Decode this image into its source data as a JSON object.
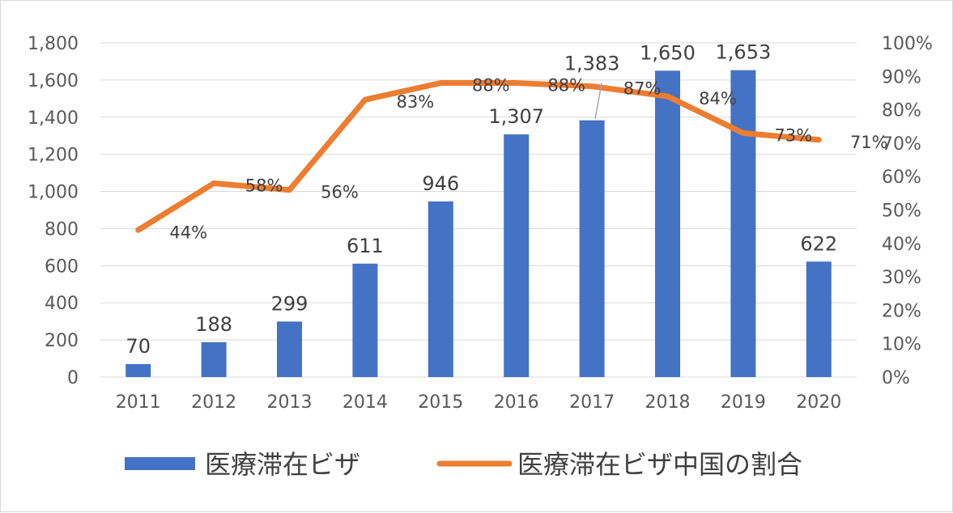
{
  "chart_data": {
    "type": "bar",
    "categories": [
      "2011",
      "2012",
      "2013",
      "2014",
      "2015",
      "2016",
      "2017",
      "2018",
      "2019",
      "2020"
    ],
    "series": [
      {
        "name": "医療滞在ビザ",
        "type": "bar",
        "axis": "left",
        "color": "#4472c4",
        "values": [
          70,
          188,
          299,
          611,
          946,
          1307,
          1383,
          1650,
          1653,
          622
        ],
        "labels": [
          "70",
          "188",
          "299",
          "611",
          "946",
          "1,307",
          "1,383",
          "1,650",
          "1,653",
          "622"
        ]
      },
      {
        "name": "医療滞在ビザ中国の割合",
        "type": "line",
        "axis": "right",
        "color": "#ed7d31",
        "values": [
          44,
          58,
          56,
          83,
          88,
          88,
          87,
          84,
          73,
          71
        ],
        "labels": [
          "44%",
          "58%",
          "56%",
          "83%",
          "88%",
          "88%",
          "87%",
          "84%",
          "73%",
          "71%"
        ]
      }
    ],
    "y_left": {
      "min": 0,
      "max": 1800,
      "step": 200,
      "tick_labels": [
        "0",
        "200",
        "400",
        "600",
        "800",
        "1,000",
        "1,200",
        "1,400",
        "1,600",
        "1,800"
      ]
    },
    "y_right": {
      "min": 0,
      "max": 100,
      "step": 10,
      "tick_labels": [
        "0%",
        "10%",
        "20%",
        "30%",
        "40%",
        "50%",
        "60%",
        "70%",
        "80%",
        "90%",
        "100%"
      ]
    },
    "grid": true,
    "legend_position": "bottom"
  }
}
